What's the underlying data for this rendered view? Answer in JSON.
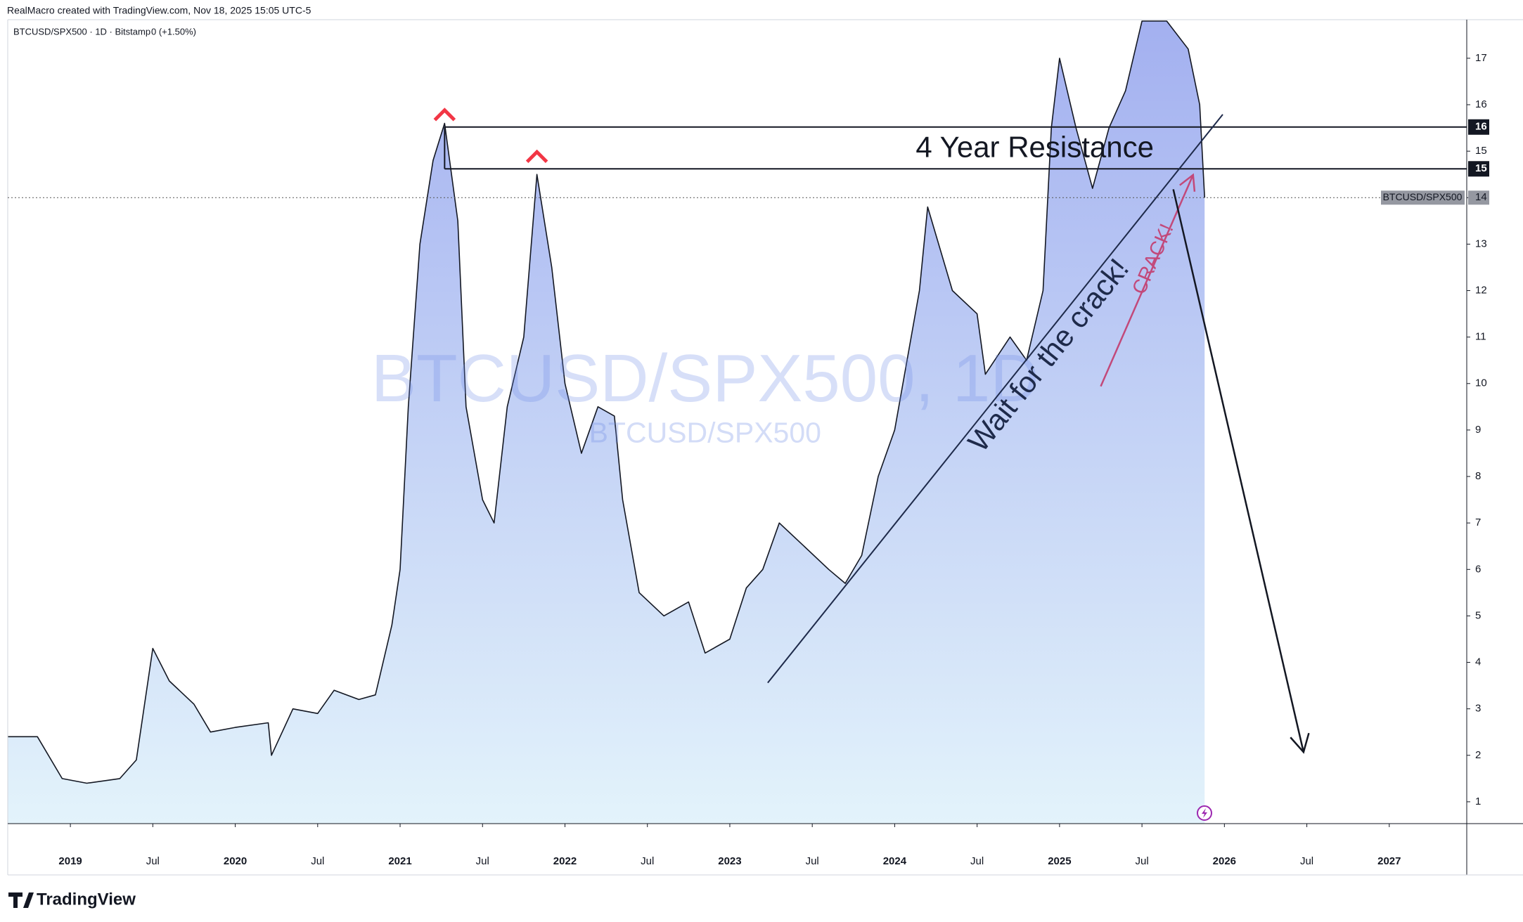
{
  "header": {
    "credit": "RealMacro created with TradingView.com, Nov 18, 2025 15:05 UTC-5",
    "symbol": "BTCUSD/SPX500 · 1D · Bitstamp",
    "change": "0 (+1.50%)"
  },
  "footer": {
    "brand": "TradingView"
  },
  "chart_data": {
    "type": "area",
    "watermark": "BTCUSD/SPX500, 1D",
    "watermark_sub": "BTCUSD/SPX500",
    "x": [
      2018.62,
      2018.8,
      2018.95,
      2019.1,
      2019.3,
      2019.4,
      2019.5,
      2019.6,
      2019.75,
      2019.85,
      2020.0,
      2020.2,
      2020.22,
      2020.35,
      2020.5,
      2020.6,
      2020.75,
      2020.85,
      2020.95,
      2021.0,
      2021.05,
      2021.12,
      2021.2,
      2021.27,
      2021.35,
      2021.4,
      2021.5,
      2021.57,
      2021.65,
      2021.75,
      2021.83,
      2021.92,
      2022.0,
      2022.1,
      2022.2,
      2022.3,
      2022.35,
      2022.45,
      2022.6,
      2022.75,
      2022.85,
      2023.0,
      2023.1,
      2023.2,
      2023.3,
      2023.45,
      2023.6,
      2023.7,
      2023.8,
      2023.9,
      2024.0,
      2024.15,
      2024.2,
      2024.35,
      2024.5,
      2024.55,
      2024.7,
      2024.8,
      2024.9,
      2024.95,
      2025.0,
      2025.1,
      2025.2,
      2025.3,
      2025.4,
      2025.5,
      2025.65,
      2025.78,
      2025.85,
      2025.88
    ],
    "series": [
      {
        "name": "BTCUSD/SPX500",
        "color": "#131722",
        "values": [
          2.4,
          2.4,
          1.5,
          1.4,
          1.5,
          1.9,
          4.3,
          3.6,
          3.1,
          2.5,
          2.6,
          2.7,
          2.0,
          3.0,
          2.9,
          3.4,
          3.2,
          3.3,
          4.8,
          6.0,
          9.5,
          13.0,
          14.8,
          15.6,
          13.5,
          9.5,
          7.5,
          7.0,
          9.5,
          11.0,
          14.5,
          12.5,
          10.0,
          8.5,
          9.5,
          9.3,
          7.5,
          5.5,
          5.0,
          5.3,
          4.2,
          4.5,
          5.6,
          6.0,
          7.0,
          6.5,
          6.0,
          5.7,
          6.3,
          8.0,
          9.0,
          12.0,
          13.8,
          12.0,
          11.5,
          10.2,
          11.0,
          10.5,
          12.0,
          15.5,
          17.0,
          15.5,
          14.2,
          15.5,
          16.3,
          17.8,
          17.8,
          17.2,
          16.0,
          14.0
        ]
      }
    ],
    "xlim": [
      2018.62,
      2027.47
    ],
    "xticks": [
      2019,
      {
        "value": 2019.5,
        "label": "Jul"
      },
      2020,
      {
        "value": 2020.5,
        "label": "Jul"
      },
      2021,
      {
        "value": 2021.5,
        "label": "Jul"
      },
      2022,
      {
        "value": 2022.5,
        "label": "Jul"
      },
      2023,
      {
        "value": 2023.5,
        "label": "Jul"
      },
      2024,
      {
        "value": 2024.5,
        "label": "Jul"
      },
      2025,
      {
        "value": 2025.5,
        "label": "Jul"
      },
      2026,
      {
        "value": 2026.5,
        "label": "Jul"
      },
      2027
    ],
    "ylim": [
      0.53,
      17.83
    ],
    "yticks": [
      1,
      2,
      3,
      4,
      5,
      6,
      7,
      8,
      9,
      10,
      11,
      12,
      13,
      14,
      15,
      16,
      17
    ],
    "resistance": {
      "title": "4 Year Resistance",
      "from_x": 2021.27,
      "levels": [
        {
          "value": 15.52,
          "label": "16"
        },
        {
          "value": 14.62,
          "label": "15"
        }
      ]
    },
    "peak_markers_x": [
      2021.27,
      2021.83
    ],
    "last_price": 14,
    "last_price_name": "BTCUSD/SPX500",
    "trendline": {
      "label": "Wait for the crack!",
      "x": [
        2023.23,
        2025.99
      ],
      "y": [
        3.56,
        15.79
      ]
    },
    "crack_arrow": {
      "label": "CRACK!",
      "x": [
        2025.25,
        2025.81
      ],
      "y": [
        9.94,
        14.49
      ]
    },
    "target_arrow": {
      "x": [
        2025.69,
        2026.48
      ],
      "y": [
        14.18,
        2.07
      ]
    }
  }
}
